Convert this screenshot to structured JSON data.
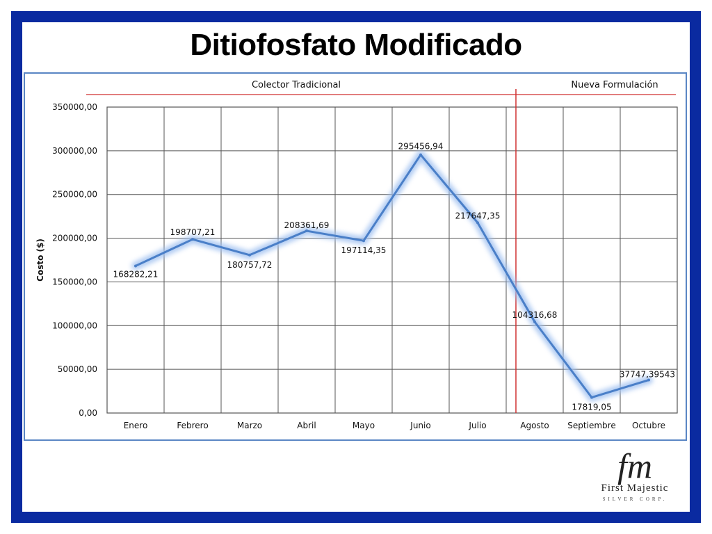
{
  "slide": {
    "title": "Ditiofosfato Modificado",
    "border_color": "#0a2aa0"
  },
  "chart_data": {
    "type": "line",
    "title": "",
    "xlabel": "",
    "ylabel": "Costo ($)",
    "ylim": [
      0,
      350000
    ],
    "y_ticks": [
      "0,00",
      "50000,00",
      "100000,00",
      "150000,00",
      "200000,00",
      "250000,00",
      "300000,00",
      "350000,00"
    ],
    "y_tick_values": [
      0,
      50000,
      100000,
      150000,
      200000,
      250000,
      300000,
      350000
    ],
    "categories": [
      "Enero",
      "Febrero",
      "Marzo",
      "Abril",
      "Mayo",
      "Junio",
      "Julio",
      "Agosto",
      "Septiembre",
      "Octubre"
    ],
    "values": [
      168282.21,
      198707.21,
      180757.72,
      208361.69,
      197114.35,
      295456.94,
      217647.35,
      104316.68,
      17819.05,
      37747.39543
    ],
    "data_labels": [
      "168282,21",
      "198707,21",
      "180757,72",
      "208361,69",
      "197114,35",
      "295456,94",
      "217647,35",
      "104316,68",
      "17819,05",
      "37747,39543"
    ],
    "grid": true,
    "line_color": "#4a7fc8",
    "annotations": {
      "left_section": "Colector Tradicional",
      "right_section": "Nueva Formulación",
      "divider_color": "#d03030"
    }
  },
  "logo": {
    "monogram": "fm",
    "name": "First Majestic",
    "subtitle": "SILVER CORP."
  }
}
